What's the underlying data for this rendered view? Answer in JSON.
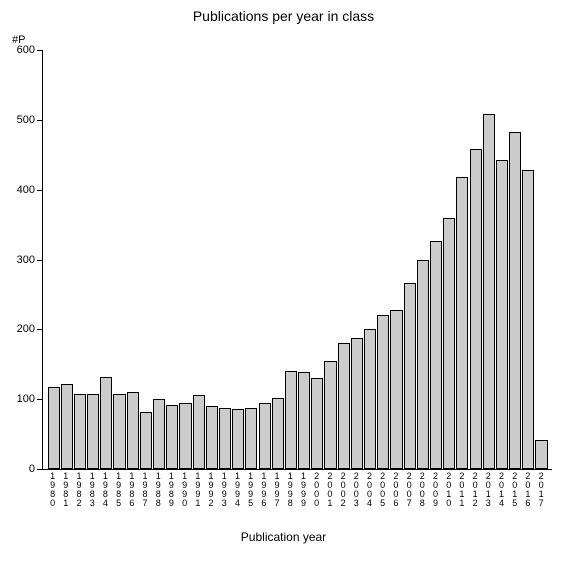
{
  "chart": {
    "type": "bar",
    "title": "Publications per year in class",
    "title_fontsize": 14,
    "y_unit_label": "#P",
    "xlabel": "Publication year",
    "xlabel_fontsize": 12,
    "categories": [
      "1980",
      "1981",
      "1982",
      "1983",
      "1984",
      "1985",
      "1986",
      "1987",
      "1988",
      "1989",
      "1990",
      "1991",
      "1992",
      "1993",
      "1994",
      "1995",
      "1996",
      "1997",
      "1998",
      "1999",
      "2000",
      "2001",
      "2002",
      "2003",
      "2004",
      "2005",
      "2006",
      "2007",
      "2008",
      "2009",
      "2010",
      "2011",
      "2012",
      "2013",
      "2014",
      "2015",
      "2016",
      "2017"
    ],
    "values": [
      118,
      122,
      108,
      108,
      132,
      108,
      110,
      82,
      100,
      92,
      95,
      106,
      90,
      88,
      86,
      88,
      95,
      102,
      140,
      139,
      130,
      155,
      180,
      188,
      200,
      220,
      228,
      266,
      300,
      327,
      360,
      418,
      458,
      508,
      442,
      482,
      428,
      42
    ],
    "ylim": [
      0,
      600
    ],
    "ytick_step": 100,
    "yticks": [
      0,
      100,
      200,
      300,
      400,
      500,
      600
    ],
    "bar_fill": "#cccccc",
    "bar_border": "#000000",
    "background_color": "#ffffff",
    "axis_color": "#000000",
    "tick_font_size": 11,
    "xlabel_tick_fontsize": 9,
    "bar_width_ratio": 0.92
  }
}
